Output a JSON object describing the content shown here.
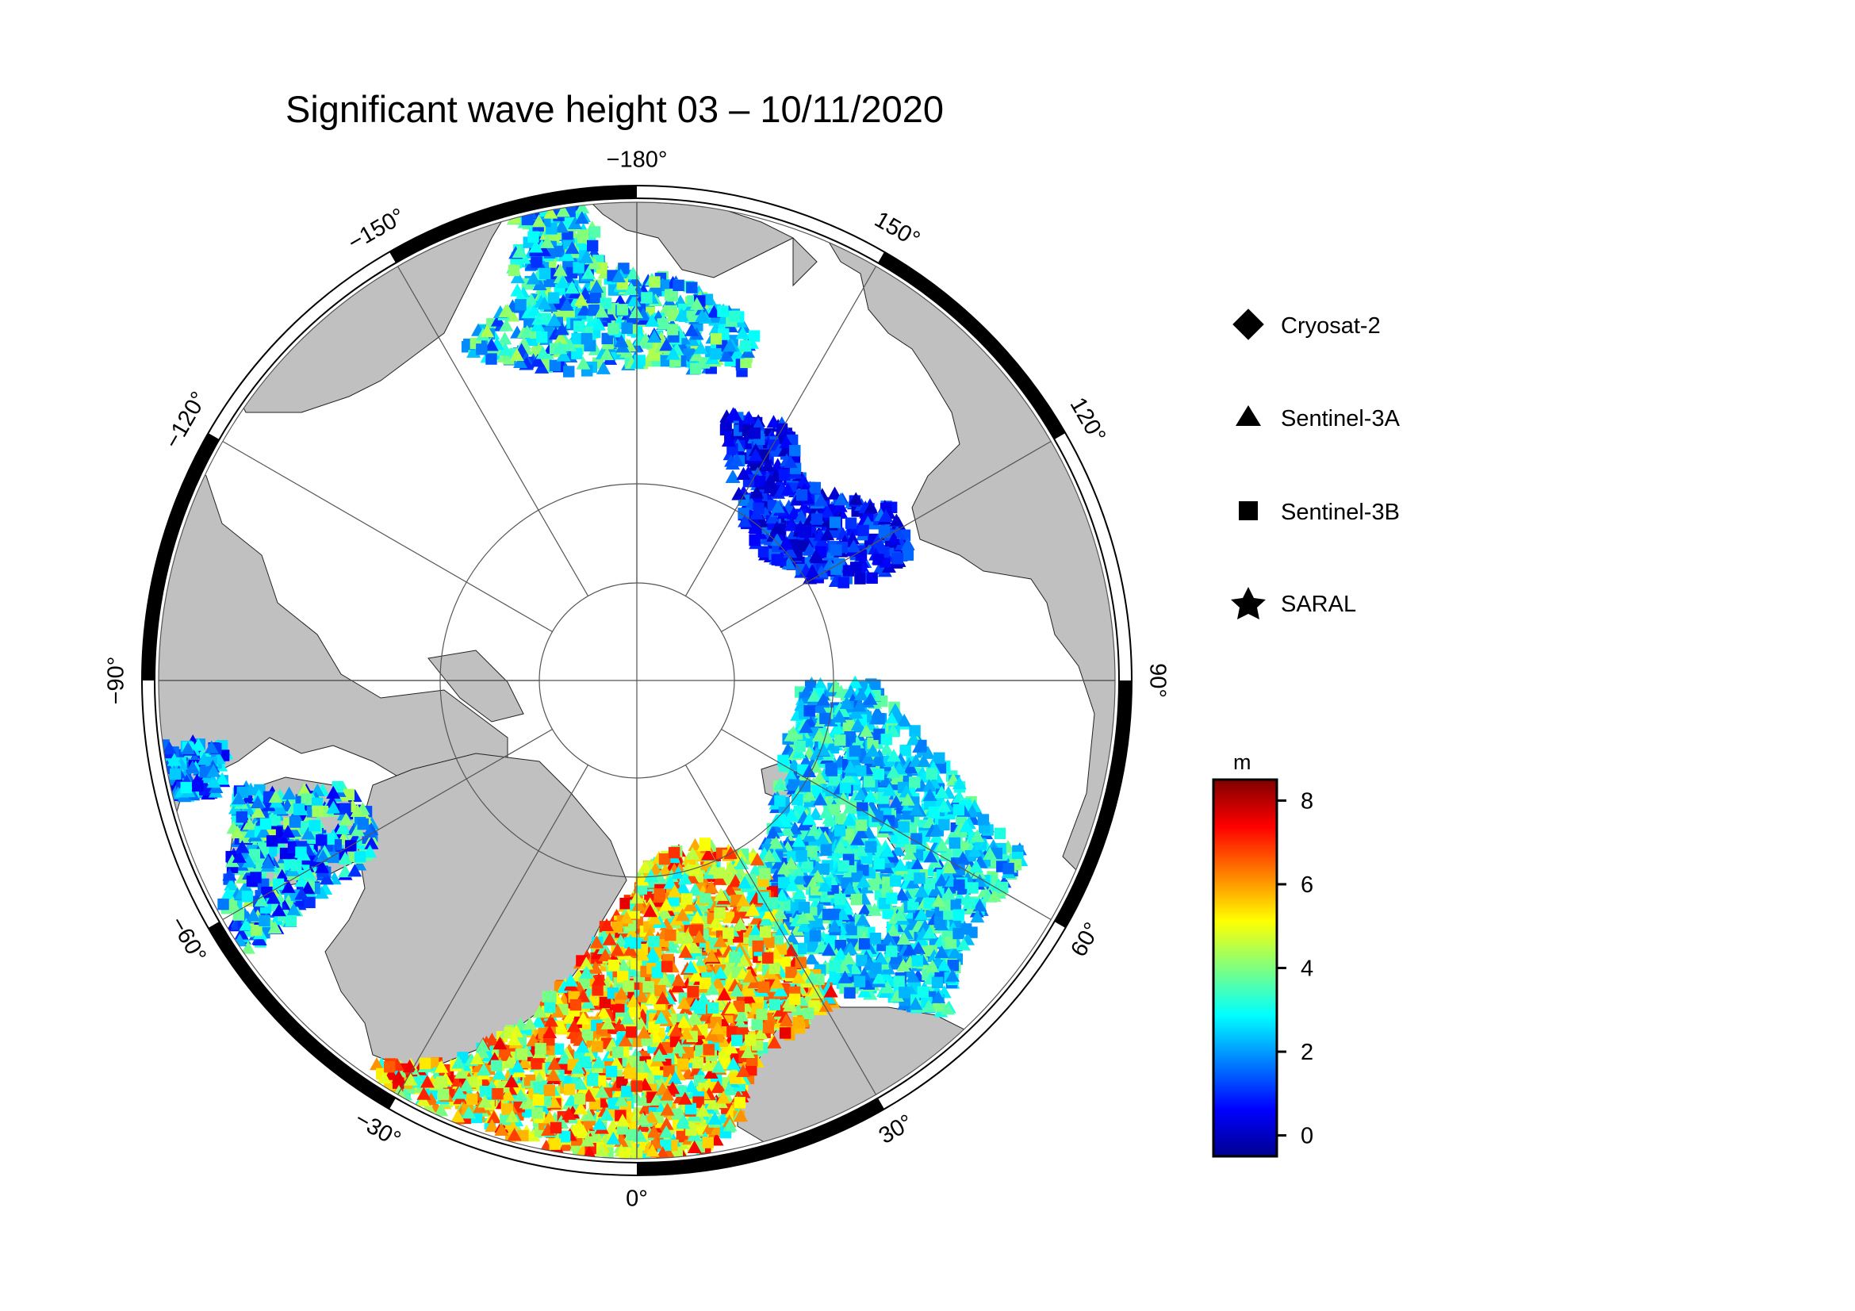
{
  "title": "Significant wave height 03 – 10/11/2020",
  "map": {
    "projection": "polar stereographic, North Pole",
    "longitude_labels": [
      "−180°",
      "150°",
      "120°",
      "90°",
      "60°",
      "30°",
      "0°",
      "−30°",
      "−60°",
      "−90°",
      "−120°",
      "−150°"
    ],
    "colors": {
      "land": "#c0c0c0",
      "ocean": "#ffffff",
      "graticule": "#555555",
      "frame": "#000000"
    }
  },
  "legend": {
    "items": [
      {
        "label": "Cryosat-2",
        "symbol": "diamond-icon"
      },
      {
        "label": "Sentinel-3A",
        "symbol": "triangle-icon"
      },
      {
        "label": "Sentinel-3B",
        "symbol": "square-icon"
      },
      {
        "label": "SARAL",
        "symbol": "star-icon"
      }
    ]
  },
  "colorbar": {
    "unit": "m",
    "ticks": [
      "8",
      "6",
      "4",
      "2",
      "0"
    ],
    "range": [
      -0.5,
      8.5
    ],
    "colormap": "jet"
  }
}
